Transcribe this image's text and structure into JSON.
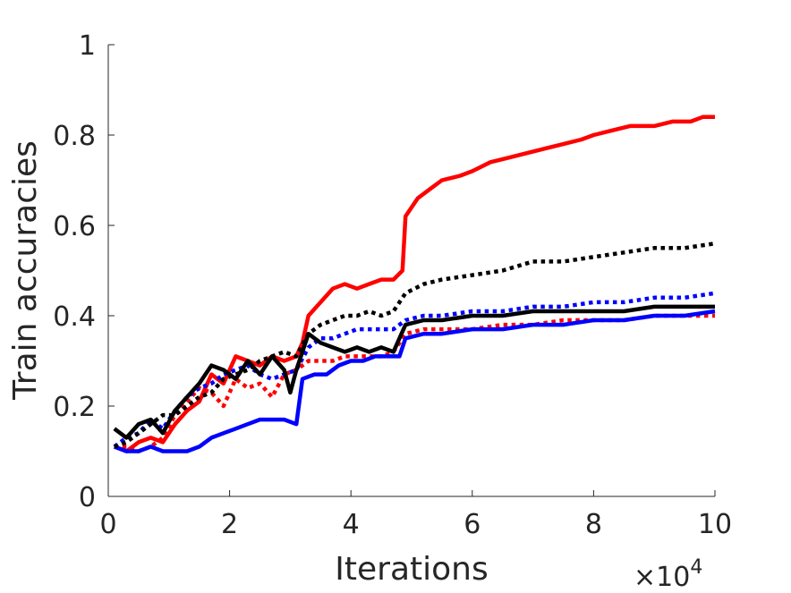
{
  "chart_data": {
    "type": "line",
    "title": "",
    "xlabel": "Iterations",
    "ylabel": "Train accuracies",
    "x_exponent": {
      "base": "×10",
      "power": "4"
    },
    "xlim": [
      0,
      10
    ],
    "ylim": [
      0,
      1
    ],
    "xticks": [
      "0",
      "2",
      "4",
      "6",
      "8",
      "10"
    ],
    "yticks": [
      "0",
      "0.2",
      "0.4",
      "0.6",
      "0.8",
      "1"
    ],
    "grid": false,
    "legend": "none",
    "series": [
      {
        "color": "#ff0000",
        "dash": "solid",
        "points": [
          [
            0.1,
            0.11
          ],
          [
            0.3,
            0.1
          ],
          [
            0.5,
            0.12
          ],
          [
            0.7,
            0.13
          ],
          [
            0.9,
            0.12
          ],
          [
            1.1,
            0.16
          ],
          [
            1.3,
            0.19
          ],
          [
            1.5,
            0.21
          ],
          [
            1.7,
            0.27
          ],
          [
            1.9,
            0.25
          ],
          [
            2.1,
            0.31
          ],
          [
            2.3,
            0.3
          ],
          [
            2.5,
            0.29
          ],
          [
            2.7,
            0.31
          ],
          [
            2.9,
            0.3
          ],
          [
            3.1,
            0.31
          ],
          [
            3.2,
            0.34
          ],
          [
            3.3,
            0.4
          ],
          [
            3.5,
            0.43
          ],
          [
            3.7,
            0.46
          ],
          [
            3.9,
            0.47
          ],
          [
            4.1,
            0.46
          ],
          [
            4.3,
            0.47
          ],
          [
            4.5,
            0.48
          ],
          [
            4.7,
            0.48
          ],
          [
            4.85,
            0.5
          ],
          [
            4.9,
            0.62
          ],
          [
            5.1,
            0.66
          ],
          [
            5.3,
            0.68
          ],
          [
            5.5,
            0.7
          ],
          [
            5.8,
            0.71
          ],
          [
            6.0,
            0.72
          ],
          [
            6.3,
            0.74
          ],
          [
            6.6,
            0.75
          ],
          [
            6.9,
            0.76
          ],
          [
            7.2,
            0.77
          ],
          [
            7.5,
            0.78
          ],
          [
            7.8,
            0.79
          ],
          [
            8.0,
            0.8
          ],
          [
            8.3,
            0.81
          ],
          [
            8.6,
            0.82
          ],
          [
            9.0,
            0.82
          ],
          [
            9.3,
            0.83
          ],
          [
            9.6,
            0.83
          ],
          [
            9.8,
            0.84
          ],
          [
            10.0,
            0.84
          ]
        ]
      },
      {
        "color": "#ff0000",
        "dash": "dotted",
        "points": [
          [
            0.1,
            0.11
          ],
          [
            0.3,
            0.11
          ],
          [
            0.5,
            0.1
          ],
          [
            0.7,
            0.11
          ],
          [
            0.9,
            0.13
          ],
          [
            1.1,
            0.18
          ],
          [
            1.3,
            0.21
          ],
          [
            1.5,
            0.24
          ],
          [
            1.7,
            0.23
          ],
          [
            1.9,
            0.2
          ],
          [
            2.1,
            0.26
          ],
          [
            2.3,
            0.24
          ],
          [
            2.5,
            0.25
          ],
          [
            2.7,
            0.22
          ],
          [
            2.9,
            0.27
          ],
          [
            3.1,
            0.28
          ],
          [
            3.3,
            0.3
          ],
          [
            3.5,
            0.3
          ],
          [
            3.7,
            0.3
          ],
          [
            3.9,
            0.31
          ],
          [
            4.1,
            0.31
          ],
          [
            4.3,
            0.31
          ],
          [
            4.5,
            0.31
          ],
          [
            4.7,
            0.32
          ],
          [
            4.9,
            0.36
          ],
          [
            5.2,
            0.37
          ],
          [
            5.5,
            0.37
          ],
          [
            6.0,
            0.37
          ],
          [
            6.5,
            0.38
          ],
          [
            7.0,
            0.38
          ],
          [
            7.5,
            0.39
          ],
          [
            8.0,
            0.39
          ],
          [
            8.5,
            0.39
          ],
          [
            9.0,
            0.4
          ],
          [
            9.5,
            0.4
          ],
          [
            10.0,
            0.4
          ]
        ]
      },
      {
        "color": "#0000ff",
        "dash": "solid",
        "points": [
          [
            0.1,
            0.11
          ],
          [
            0.3,
            0.1
          ],
          [
            0.5,
            0.1
          ],
          [
            0.7,
            0.11
          ],
          [
            0.9,
            0.1
          ],
          [
            1.1,
            0.1
          ],
          [
            1.3,
            0.1
          ],
          [
            1.5,
            0.11
          ],
          [
            1.7,
            0.13
          ],
          [
            1.9,
            0.14
          ],
          [
            2.1,
            0.15
          ],
          [
            2.3,
            0.16
          ],
          [
            2.5,
            0.17
          ],
          [
            2.7,
            0.17
          ],
          [
            2.9,
            0.17
          ],
          [
            3.1,
            0.16
          ],
          [
            3.2,
            0.26
          ],
          [
            3.4,
            0.27
          ],
          [
            3.6,
            0.27
          ],
          [
            3.8,
            0.29
          ],
          [
            4.0,
            0.3
          ],
          [
            4.2,
            0.3
          ],
          [
            4.4,
            0.31
          ],
          [
            4.6,
            0.31
          ],
          [
            4.8,
            0.31
          ],
          [
            4.9,
            0.35
          ],
          [
            5.2,
            0.36
          ],
          [
            5.5,
            0.36
          ],
          [
            6.0,
            0.37
          ],
          [
            6.5,
            0.37
          ],
          [
            7.0,
            0.38
          ],
          [
            7.5,
            0.38
          ],
          [
            8.0,
            0.39
          ],
          [
            8.5,
            0.39
          ],
          [
            9.0,
            0.4
          ],
          [
            9.5,
            0.4
          ],
          [
            10.0,
            0.41
          ]
        ]
      },
      {
        "color": "#0000ff",
        "dash": "dotted",
        "points": [
          [
            0.1,
            0.11
          ],
          [
            0.3,
            0.13
          ],
          [
            0.5,
            0.14
          ],
          [
            0.7,
            0.17
          ],
          [
            0.9,
            0.15
          ],
          [
            1.1,
            0.19
          ],
          [
            1.3,
            0.22
          ],
          [
            1.5,
            0.24
          ],
          [
            1.7,
            0.25
          ],
          [
            1.9,
            0.27
          ],
          [
            2.1,
            0.28
          ],
          [
            2.3,
            0.29
          ],
          [
            2.5,
            0.27
          ],
          [
            2.7,
            0.26
          ],
          [
            2.9,
            0.27
          ],
          [
            3.1,
            0.28
          ],
          [
            3.3,
            0.33
          ],
          [
            3.5,
            0.35
          ],
          [
            3.7,
            0.35
          ],
          [
            3.9,
            0.36
          ],
          [
            4.1,
            0.37
          ],
          [
            4.3,
            0.37
          ],
          [
            4.5,
            0.37
          ],
          [
            4.7,
            0.37
          ],
          [
            4.9,
            0.39
          ],
          [
            5.2,
            0.4
          ],
          [
            5.5,
            0.4
          ],
          [
            6.0,
            0.41
          ],
          [
            6.5,
            0.41
          ],
          [
            7.0,
            0.42
          ],
          [
            7.5,
            0.42
          ],
          [
            8.0,
            0.43
          ],
          [
            8.5,
            0.43
          ],
          [
            9.0,
            0.44
          ],
          [
            9.5,
            0.44
          ],
          [
            10.0,
            0.45
          ]
        ]
      },
      {
        "color": "#000000",
        "dash": "solid",
        "points": [
          [
            0.1,
            0.15
          ],
          [
            0.3,
            0.13
          ],
          [
            0.5,
            0.16
          ],
          [
            0.7,
            0.17
          ],
          [
            0.9,
            0.14
          ],
          [
            1.1,
            0.19
          ],
          [
            1.3,
            0.22
          ],
          [
            1.5,
            0.25
          ],
          [
            1.7,
            0.29
          ],
          [
            1.9,
            0.28
          ],
          [
            2.1,
            0.26
          ],
          [
            2.3,
            0.3
          ],
          [
            2.5,
            0.27
          ],
          [
            2.7,
            0.31
          ],
          [
            2.9,
            0.28
          ],
          [
            3.0,
            0.23
          ],
          [
            3.1,
            0.28
          ],
          [
            3.3,
            0.36
          ],
          [
            3.5,
            0.34
          ],
          [
            3.7,
            0.33
          ],
          [
            3.9,
            0.32
          ],
          [
            4.1,
            0.33
          ],
          [
            4.3,
            0.32
          ],
          [
            4.5,
            0.33
          ],
          [
            4.7,
            0.32
          ],
          [
            4.9,
            0.38
          ],
          [
            5.2,
            0.39
          ],
          [
            5.5,
            0.39
          ],
          [
            6.0,
            0.4
          ],
          [
            6.5,
            0.4
          ],
          [
            7.0,
            0.41
          ],
          [
            7.5,
            0.41
          ],
          [
            8.0,
            0.41
          ],
          [
            8.5,
            0.41
          ],
          [
            9.0,
            0.42
          ],
          [
            9.5,
            0.42
          ],
          [
            10.0,
            0.42
          ]
        ]
      },
      {
        "color": "#000000",
        "dash": "dotted",
        "points": [
          [
            0.1,
            0.11
          ],
          [
            0.3,
            0.12
          ],
          [
            0.5,
            0.14
          ],
          [
            0.7,
            0.16
          ],
          [
            0.9,
            0.18
          ],
          [
            1.1,
            0.18
          ],
          [
            1.3,
            0.2
          ],
          [
            1.5,
            0.22
          ],
          [
            1.7,
            0.23
          ],
          [
            1.9,
            0.26
          ],
          [
            2.1,
            0.27
          ],
          [
            2.3,
            0.28
          ],
          [
            2.5,
            0.3
          ],
          [
            2.7,
            0.31
          ],
          [
            2.9,
            0.32
          ],
          [
            3.1,
            0.31
          ],
          [
            3.3,
            0.36
          ],
          [
            3.5,
            0.38
          ],
          [
            3.7,
            0.39
          ],
          [
            3.9,
            0.4
          ],
          [
            4.1,
            0.4
          ],
          [
            4.3,
            0.41
          ],
          [
            4.5,
            0.4
          ],
          [
            4.7,
            0.41
          ],
          [
            4.9,
            0.45
          ],
          [
            5.2,
            0.47
          ],
          [
            5.5,
            0.48
          ],
          [
            6.0,
            0.49
          ],
          [
            6.5,
            0.5
          ],
          [
            7.0,
            0.52
          ],
          [
            7.5,
            0.52
          ],
          [
            8.0,
            0.53
          ],
          [
            8.5,
            0.54
          ],
          [
            9.0,
            0.55
          ],
          [
            9.5,
            0.55
          ],
          [
            10.0,
            0.56
          ]
        ]
      }
    ]
  }
}
